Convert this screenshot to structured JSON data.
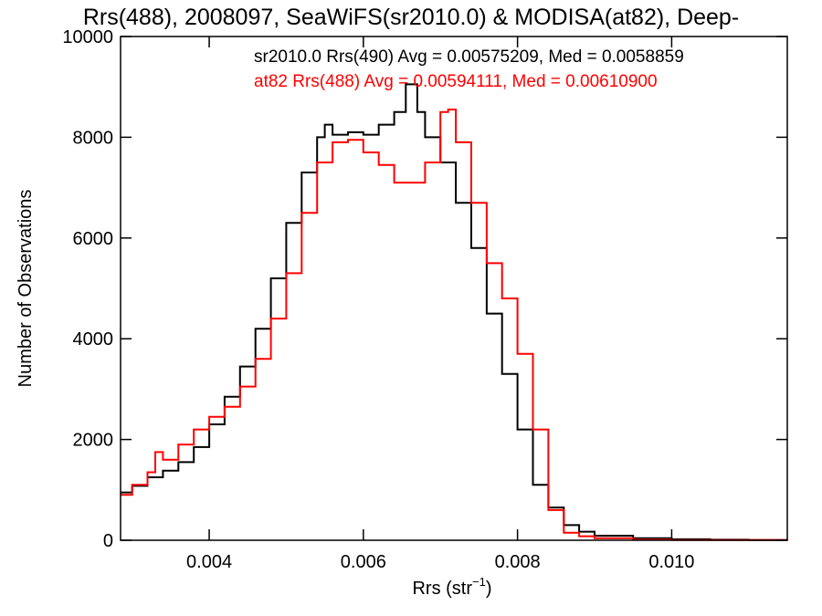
{
  "chart_data": {
    "type": "line",
    "step": true,
    "title": "Rrs(488), 2008097, SeaWiFS(sr2010.0) & MODISA(at82), Deep-",
    "xlabel_main": "Rrs (str",
    "xlabel_sup": "−1",
    "xlabel_close": ")",
    "ylabel": "Number of Observations",
    "xlim": [
      0.00285,
      0.0115
    ],
    "ylim": [
      0,
      10000
    ],
    "x_tick_values": [
      0.004,
      0.006,
      0.008,
      0.01
    ],
    "x_tick_labels": [
      "0.004",
      "0.006",
      "0.008",
      "0.010"
    ],
    "y_tick_values": [
      0,
      2000,
      4000,
      6000,
      8000,
      10000
    ],
    "y_tick_labels": [
      "0",
      "2000",
      "4000",
      "6000",
      "8000",
      "10000"
    ],
    "grid": false,
    "annotations": [
      {
        "text": "sr2010.0 Rrs(490) Avg = 0.00575209, Med = 0.0058859",
        "color": "#000000"
      },
      {
        "text": "at82 Rrs(488) Avg = 0.00594111, Med = 0.00610900",
        "color": "#ff0000"
      }
    ],
    "series": [
      {
        "color": "#000000",
        "points": [
          [
            0.00285,
            950
          ],
          [
            0.003,
            1080
          ],
          [
            0.0032,
            1250
          ],
          [
            0.0034,
            1380
          ],
          [
            0.0036,
            1550
          ],
          [
            0.0038,
            1850
          ],
          [
            0.004,
            2300
          ],
          [
            0.0042,
            2850
          ],
          [
            0.0044,
            3450
          ],
          [
            0.0046,
            4200
          ],
          [
            0.0048,
            5200
          ],
          [
            0.005,
            6300
          ],
          [
            0.0052,
            7300
          ],
          [
            0.0054,
            8000
          ],
          [
            0.0055,
            8250
          ],
          [
            0.0056,
            8050
          ],
          [
            0.0058,
            8100
          ],
          [
            0.006,
            8050
          ],
          [
            0.0062,
            8250
          ],
          [
            0.0064,
            8500
          ],
          [
            0.00655,
            9050
          ],
          [
            0.0067,
            8500
          ],
          [
            0.0068,
            8000
          ],
          [
            0.007,
            7500
          ],
          [
            0.0072,
            6700
          ],
          [
            0.0074,
            5800
          ],
          [
            0.0076,
            4500
          ],
          [
            0.0078,
            3300
          ],
          [
            0.008,
            2200
          ],
          [
            0.0082,
            1100
          ],
          [
            0.0084,
            650
          ],
          [
            0.0086,
            300
          ],
          [
            0.0088,
            170
          ],
          [
            0.009,
            90
          ],
          [
            0.0095,
            40
          ],
          [
            0.01,
            20
          ],
          [
            0.0105,
            10
          ],
          [
            0.011,
            5
          ],
          [
            0.0115,
            0
          ]
        ]
      },
      {
        "color": "#ff0000",
        "points": [
          [
            0.00285,
            900
          ],
          [
            0.003,
            1100
          ],
          [
            0.0032,
            1350
          ],
          [
            0.0033,
            1750
          ],
          [
            0.0034,
            1600
          ],
          [
            0.0036,
            1900
          ],
          [
            0.0038,
            2200
          ],
          [
            0.004,
            2450
          ],
          [
            0.0042,
            2650
          ],
          [
            0.0044,
            3050
          ],
          [
            0.0046,
            3600
          ],
          [
            0.0048,
            4400
          ],
          [
            0.005,
            5300
          ],
          [
            0.0052,
            6500
          ],
          [
            0.0054,
            7500
          ],
          [
            0.0056,
            7900
          ],
          [
            0.0058,
            7950
          ],
          [
            0.006,
            7700
          ],
          [
            0.0062,
            7450
          ],
          [
            0.0064,
            7100
          ],
          [
            0.0066,
            7100
          ],
          [
            0.0068,
            7500
          ],
          [
            0.007,
            8500
          ],
          [
            0.0071,
            8550
          ],
          [
            0.0072,
            7900
          ],
          [
            0.0074,
            6700
          ],
          [
            0.0076,
            5500
          ],
          [
            0.0078,
            4800
          ],
          [
            0.008,
            3700
          ],
          [
            0.0082,
            2200
          ],
          [
            0.0084,
            600
          ],
          [
            0.0086,
            150
          ],
          [
            0.0088,
            80
          ],
          [
            0.009,
            40
          ],
          [
            0.0095,
            15
          ],
          [
            0.01,
            5
          ],
          [
            0.0115,
            0
          ]
        ]
      }
    ]
  }
}
